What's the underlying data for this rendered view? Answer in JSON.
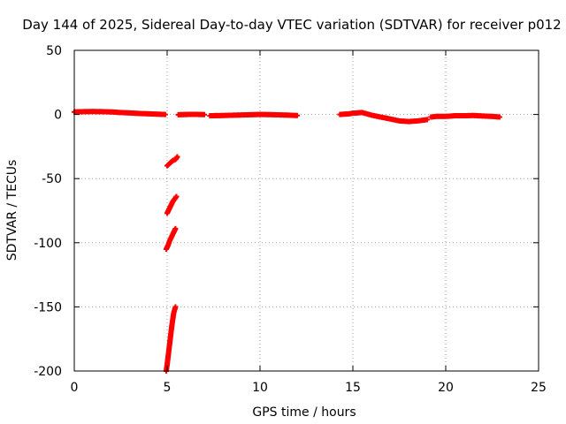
{
  "chart_data": {
    "type": "scatter",
    "title": "Day 144 of 2025, Sidereal Day-to-day VTEC variation (SDTVAR) for receiver p012",
    "xlabel": "GPS time / hours",
    "ylabel": "SDTVAR / TECUs",
    "xlim": [
      0,
      25
    ],
    "ylim": [
      -200,
      50
    ],
    "xticks": [
      0,
      5,
      10,
      15,
      20,
      25
    ],
    "yticks": [
      50,
      0,
      -50,
      -100,
      -150,
      -200
    ],
    "grid": true,
    "series": [
      {
        "name": "SDTVAR",
        "color": "#ff0000",
        "segments": [
          {
            "label": "main-0-2",
            "points": [
              [
                0.0,
                2.0
              ],
              [
                0.5,
                2.2
              ],
              [
                1.0,
                2.3
              ],
              [
                1.5,
                2.2
              ],
              [
                2.0,
                2.0
              ],
              [
                2.5,
                1.5
              ],
              [
                3.0,
                1.2
              ],
              [
                3.5,
                0.8
              ],
              [
                4.0,
                0.5
              ],
              [
                4.5,
                0.2
              ],
              [
                4.9,
                0.0
              ]
            ]
          },
          {
            "label": "main-6",
            "points": [
              [
                5.6,
                -0.2
              ],
              [
                6.0,
                0.0
              ],
              [
                6.5,
                0.1
              ],
              [
                7.0,
                -0.1
              ]
            ]
          },
          {
            "label": "main-7-12",
            "points": [
              [
                7.3,
                -1.0
              ],
              [
                8.0,
                -0.8
              ],
              [
                9.0,
                -0.4
              ],
              [
                10.0,
                0.0
              ],
              [
                10.5,
                -0.1
              ],
              [
                11.0,
                -0.3
              ],
              [
                11.5,
                -0.5
              ],
              [
                12.0,
                -0.8
              ]
            ]
          },
          {
            "label": "main-14-17",
            "points": [
              [
                14.3,
                0.0
              ],
              [
                14.8,
                0.5
              ],
              [
                15.0,
                1.0
              ],
              [
                15.5,
                1.5
              ],
              [
                16.0,
                -0.5
              ],
              [
                16.5,
                -2.0
              ],
              [
                17.0,
                -3.5
              ],
              [
                17.5,
                -5.0
              ],
              [
                18.0,
                -5.5
              ],
              [
                18.5,
                -5.0
              ],
              [
                19.0,
                -4.0
              ]
            ]
          },
          {
            "label": "main-19-23",
            "points": [
              [
                19.2,
                -2.0
              ],
              [
                19.5,
                -1.5
              ],
              [
                20.0,
                -1.5
              ],
              [
                20.5,
                -1.0
              ],
              [
                21.0,
                -1.0
              ],
              [
                21.5,
                -0.8
              ],
              [
                22.0,
                -1.2
              ],
              [
                22.5,
                -1.5
              ],
              [
                22.9,
                -2.0
              ]
            ]
          },
          {
            "label": "dip-1",
            "points": [
              [
                5.0,
                -40
              ],
              [
                5.15,
                -38
              ],
              [
                5.3,
                -36
              ],
              [
                5.45,
                -35
              ],
              [
                5.55,
                -33
              ]
            ]
          },
          {
            "label": "dip-2",
            "points": [
              [
                5.0,
                -77
              ],
              [
                5.1,
                -74
              ],
              [
                5.2,
                -71
              ],
              [
                5.3,
                -68
              ],
              [
                5.4,
                -66
              ],
              [
                5.5,
                -64
              ]
            ]
          },
          {
            "label": "dip-3",
            "points": [
              [
                4.95,
                -105
              ],
              [
                5.05,
                -102
              ],
              [
                5.15,
                -98
              ],
              [
                5.25,
                -95
              ],
              [
                5.35,
                -92
              ],
              [
                5.45,
                -89
              ]
            ]
          },
          {
            "label": "dip-4",
            "points": [
              [
                4.95,
                -200
              ],
              [
                5.0,
                -195
              ],
              [
                5.05,
                -189
              ],
              [
                5.1,
                -183
              ],
              [
                5.15,
                -177
              ],
              [
                5.2,
                -171
              ],
              [
                5.25,
                -165
              ],
              [
                5.3,
                -160
              ],
              [
                5.35,
                -155
              ],
              [
                5.45,
                -150
              ]
            ]
          }
        ]
      }
    ]
  }
}
